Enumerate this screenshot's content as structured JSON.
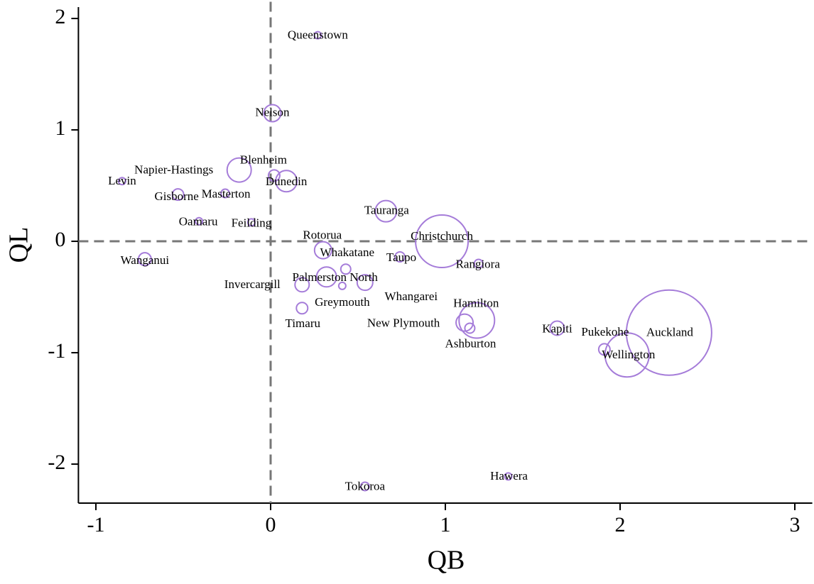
{
  "chart_data": {
    "type": "scatter",
    "x_label": "QB",
    "y_label": "QL",
    "color": "#a57cd9",
    "labels": [
      "Queenstown",
      "Nelson",
      "Napier-Hastings",
      "Blenheim",
      "Dunedin",
      "Levin",
      "Gisborne",
      "Masterton",
      "Oamaru",
      "Feilding",
      "Tauranga",
      "Christchurch",
      "Rotorua",
      "Whakatane",
      "Taupo",
      "Rangiora",
      "Wanganui",
      "Palmerston North",
      "Invercargill",
      "Greymouth",
      "Whangarei",
      "Timaru",
      "Hamilton",
      "New Plymouth",
      "Ashburton",
      "Kapiti",
      "Pukekohe",
      "Wellington",
      "Auckland",
      "Hawera",
      "Tokoroa"
    ],
    "x": [
      0.27,
      0.01,
      -0.18,
      0.02,
      0.09,
      -0.85,
      -0.53,
      -0.26,
      -0.41,
      -0.11,
      0.66,
      0.98,
      0.3,
      0.43,
      0.74,
      1.19,
      -0.72,
      0.32,
      0.18,
      0.41,
      0.54,
      0.18,
      1.18,
      1.11,
      1.14,
      1.64,
      1.91,
      2.04,
      2.28,
      1.36,
      0.54
    ],
    "values": [
      1.85,
      1.15,
      0.64,
      0.59,
      0.54,
      0.54,
      0.42,
      0.43,
      0.18,
      0.17,
      0.27,
      0.0,
      -0.08,
      -0.25,
      -0.14,
      -0.2,
      -0.16,
      -0.32,
      -0.39,
      -0.4,
      -0.37,
      -0.6,
      -0.71,
      -0.73,
      -0.78,
      -0.78,
      -0.97,
      -1.02,
      -0.82,
      -2.11,
      -2.2
    ],
    "sizes": [
      25,
      144,
      289,
      64,
      225,
      25,
      64,
      36,
      25,
      25,
      225,
      1369,
      144,
      49,
      49,
      36,
      81,
      196,
      100,
      25,
      121,
      64,
      625,
      144,
      49,
      100,
      64,
      961,
      3600,
      25,
      36
    ],
    "xlim": [
      -1.1,
      3.1
    ],
    "ylim": [
      -2.35,
      2.15
    ],
    "xticks": [
      -1,
      0,
      1,
      2,
      3
    ],
    "yticks": [
      -2,
      -1,
      0,
      1,
      2
    ],
    "vlines": [
      0
    ],
    "hlines": [
      0
    ]
  }
}
